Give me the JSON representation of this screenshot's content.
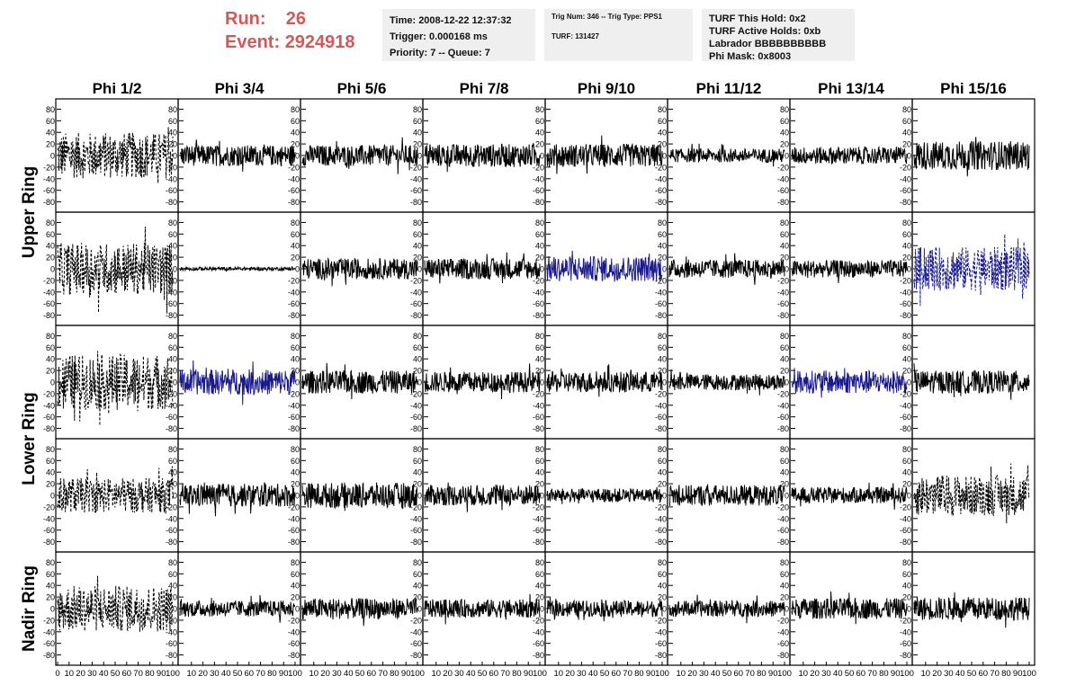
{
  "header": {
    "run_label": "Run:",
    "run_value": "26",
    "event_label": "Event:",
    "event_value": "2924918"
  },
  "info_time": {
    "time": "Time: 2008-12-22 12:37:32",
    "trigger": "Trigger: 0.000168 ms",
    "priority": "Priority: 7 -- Queue: 7"
  },
  "info_trig": {
    "trig": "Trig Num: 346 -- Trig Type: PPS1",
    "turf": "TURF: 131427"
  },
  "info_turf": {
    "hold": "TURF This Hold: 0x2",
    "active": "TURF Active Holds: 0xb",
    "labrador": "Labrador BBBBBBBBBB",
    "phimask": "Phi Mask: 0x8003"
  },
  "columns": [
    "Phi 1/2",
    "Phi 3/4",
    "Phi 5/6",
    "Phi 7/8",
    "Phi 9/10",
    "Phi 11/12",
    "Phi 13/14",
    "Phi 15/16"
  ],
  "row_groups": [
    {
      "label": "Upper Ring",
      "rows": [
        0,
        1
      ]
    },
    {
      "label": "Lower Ring",
      "rows": [
        2,
        3
      ]
    },
    {
      "label": "Nadir Ring",
      "rows": [
        4
      ]
    }
  ],
  "colors": {
    "trace": "#000000",
    "highlight": "#1a1a8c",
    "header_red": "#d05a5a",
    "info_bg": "#efefef"
  },
  "chart_data": {
    "type": "line",
    "y_ticks": [
      -80,
      -60,
      -40,
      -20,
      0,
      20,
      40,
      60,
      80
    ],
    "ylim": [
      -90,
      90
    ],
    "x_ticks_first": [
      "0",
      "10",
      "20",
      "30",
      "40",
      "50",
      "60",
      "70",
      "80",
      "90",
      "100"
    ],
    "x_ticks": [
      "10",
      "20",
      "30",
      "40",
      "50",
      "60",
      "70",
      "80",
      "90",
      "100"
    ],
    "xlim": [
      0,
      100
    ],
    "panels": [
      [
        {
          "style": "dashed",
          "amp": 40,
          "color": "trace"
        },
        {
          "style": "solid",
          "amp": 18,
          "color": "trace"
        },
        {
          "style": "solid",
          "amp": 18,
          "color": "trace"
        },
        {
          "style": "solid",
          "amp": 20,
          "color": "trace"
        },
        {
          "style": "solid",
          "amp": 20,
          "color": "trace"
        },
        {
          "style": "solid",
          "amp": 12,
          "color": "trace"
        },
        {
          "style": "solid",
          "amp": 15,
          "color": "trace"
        },
        {
          "style": "solid",
          "amp": 25,
          "color": "trace"
        }
      ],
      [
        {
          "style": "dashed",
          "amp": 45,
          "color": "trace"
        },
        {
          "style": "solid",
          "amp": 3,
          "color": "trace"
        },
        {
          "style": "solid",
          "amp": 18,
          "color": "trace"
        },
        {
          "style": "solid",
          "amp": 18,
          "color": "trace"
        },
        {
          "style": "solid",
          "amp": 22,
          "color": "highlight"
        },
        {
          "style": "solid",
          "amp": 16,
          "color": "trace"
        },
        {
          "style": "solid",
          "amp": 15,
          "color": "trace"
        },
        {
          "style": "dashed",
          "amp": 38,
          "color": "highlight"
        }
      ],
      [
        {
          "style": "dashed",
          "amp": 48,
          "color": "trace"
        },
        {
          "style": "solid",
          "amp": 22,
          "color": "highlight"
        },
        {
          "style": "solid",
          "amp": 20,
          "color": "trace"
        },
        {
          "style": "solid",
          "amp": 18,
          "color": "trace"
        },
        {
          "style": "solid",
          "amp": 18,
          "color": "trace"
        },
        {
          "style": "solid",
          "amp": 14,
          "color": "trace"
        },
        {
          "style": "solid",
          "amp": 20,
          "color": "highlight"
        },
        {
          "style": "solid",
          "amp": 20,
          "color": "trace"
        }
      ],
      [
        {
          "style": "dashed",
          "amp": 30,
          "color": "trace"
        },
        {
          "style": "solid",
          "amp": 20,
          "color": "trace"
        },
        {
          "style": "solid",
          "amp": 22,
          "color": "trace"
        },
        {
          "style": "solid",
          "amp": 18,
          "color": "trace"
        },
        {
          "style": "solid",
          "amp": 12,
          "color": "trace"
        },
        {
          "style": "solid",
          "amp": 18,
          "color": "trace"
        },
        {
          "style": "solid",
          "amp": 14,
          "color": "trace"
        },
        {
          "style": "dashed",
          "amp": 35,
          "color": "trace"
        }
      ],
      [
        {
          "style": "dashed",
          "amp": 40,
          "color": "trace"
        },
        {
          "style": "solid",
          "amp": 14,
          "color": "trace"
        },
        {
          "style": "solid",
          "amp": 18,
          "color": "trace"
        },
        {
          "style": "solid",
          "amp": 16,
          "color": "trace"
        },
        {
          "style": "solid",
          "amp": 14,
          "color": "trace"
        },
        {
          "style": "solid",
          "amp": 14,
          "color": "trace"
        },
        {
          "style": "solid",
          "amp": 18,
          "color": "trace"
        },
        {
          "style": "solid",
          "amp": 20,
          "color": "trace"
        }
      ]
    ]
  }
}
